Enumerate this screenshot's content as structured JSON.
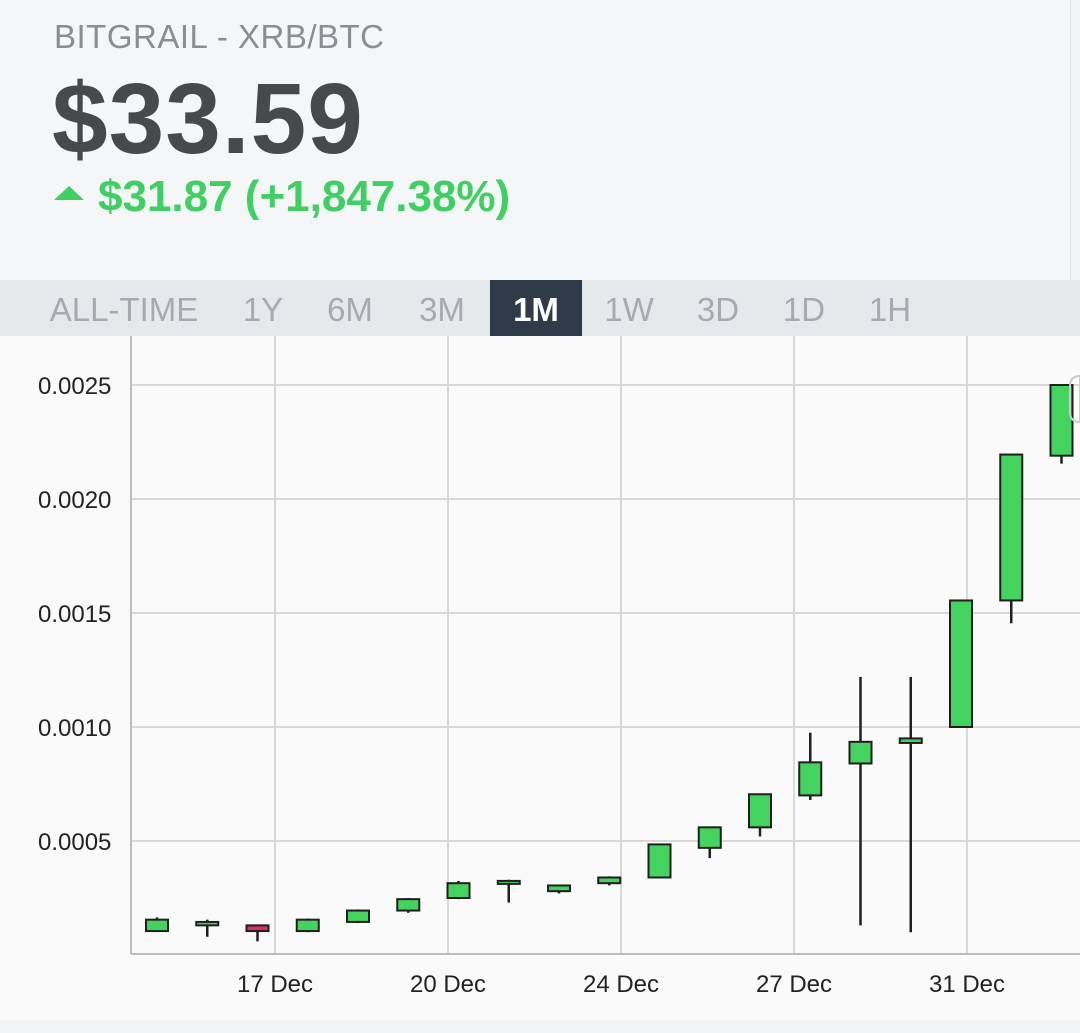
{
  "header": {
    "pair": "BITGRAIL - XRB/BTC",
    "price": "$33.59",
    "change": "$31.87 (+1,847.38%)",
    "change_color": "#3fcf62",
    "change_icon": "up-triangle-icon"
  },
  "tabs": [
    {
      "label": "ALL-TIME",
      "active": false
    },
    {
      "label": "1Y",
      "active": false
    },
    {
      "label": "6M",
      "active": false
    },
    {
      "label": "3M",
      "active": false
    },
    {
      "label": "1M",
      "active": true
    },
    {
      "label": "1W",
      "active": false
    },
    {
      "label": "3D",
      "active": false
    },
    {
      "label": "1D",
      "active": false
    },
    {
      "label": "1H",
      "active": false
    }
  ],
  "chart_data": {
    "type": "candlestick",
    "title": "",
    "xlabel": "",
    "ylabel": "",
    "ylim": [
      0.0,
      0.0026
    ],
    "y_ticks": [
      "0.0005",
      "0.0010",
      "0.0015",
      "0.0020",
      "0.0025"
    ],
    "x_ticks": [
      "17 Dec",
      "20 Dec",
      "24 Dec",
      "27 Dec",
      "31 Dec"
    ],
    "grid": true,
    "up_color": "#44d35e",
    "down_color": "#d9325f",
    "candles": [
      {
        "open": 0.000105,
        "high": 0.000165,
        "low": 0.000105,
        "close": 0.000155
      },
      {
        "open": 0.00013,
        "high": 0.000155,
        "low": 8e-05,
        "close": 0.000145
      },
      {
        "open": 0.00013,
        "high": 0.00013,
        "low": 6e-05,
        "close": 0.000105
      },
      {
        "open": 0.000105,
        "high": 0.00016,
        "low": 0.0001,
        "close": 0.000155
      },
      {
        "open": 0.000145,
        "high": 0.0002,
        "low": 0.00014,
        "close": 0.000195
      },
      {
        "open": 0.000195,
        "high": 0.00025,
        "low": 0.000185,
        "close": 0.000245
      },
      {
        "open": 0.00025,
        "high": 0.000325,
        "low": 0.000245,
        "close": 0.000315
      },
      {
        "open": 0.00032,
        "high": 0.00033,
        "low": 0.00023,
        "close": 0.000325
      },
      {
        "open": 0.00028,
        "high": 0.000305,
        "low": 0.00027,
        "close": 0.000305
      },
      {
        "open": 0.000315,
        "high": 0.000345,
        "low": 0.000305,
        "close": 0.00034
      },
      {
        "open": 0.00034,
        "high": 0.000485,
        "low": 0.00034,
        "close": 0.000485
      },
      {
        "open": 0.00047,
        "high": 0.00056,
        "low": 0.000425,
        "close": 0.00056
      },
      {
        "open": 0.00056,
        "high": 0.000705,
        "low": 0.00052,
        "close": 0.000705
      },
      {
        "open": 0.0007,
        "high": 0.000975,
        "low": 0.00068,
        "close": 0.000845
      },
      {
        "open": 0.00084,
        "high": 0.00122,
        "low": 0.00013,
        "close": 0.000935
      },
      {
        "open": 0.00093,
        "high": 0.00122,
        "low": 0.0001,
        "close": 0.00095
      },
      {
        "open": 0.001,
        "high": 0.001555,
        "low": 0.001,
        "close": 0.001555
      },
      {
        "open": 0.001555,
        "high": 0.002195,
        "low": 0.001455,
        "close": 0.002195
      },
      {
        "open": 0.00219,
        "high": 0.0025,
        "low": 0.002155,
        "close": 0.0025
      }
    ]
  }
}
